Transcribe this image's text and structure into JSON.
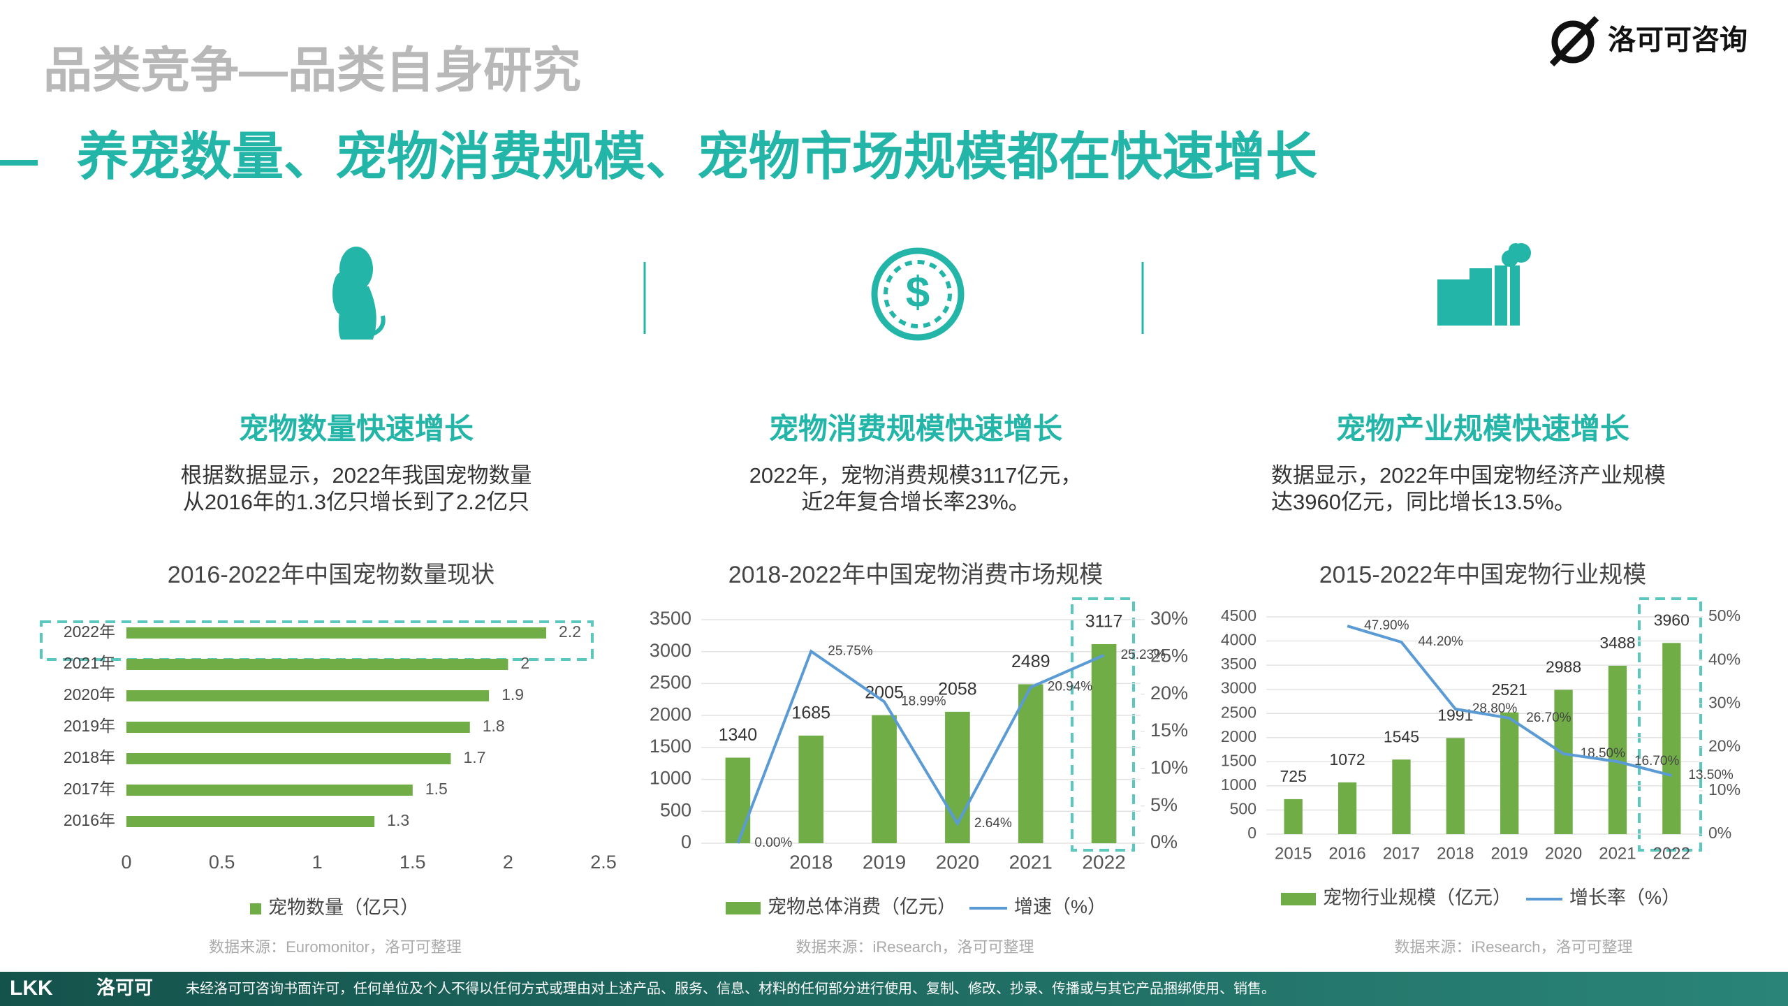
{
  "header": {
    "title": "品类竞争—品类自身研究",
    "logo": "洛可可咨询",
    "subtitle": "养宠数量、宠物消费规模、宠物市场规模都在快速增长"
  },
  "panels": [
    {
      "heading": "宠物数量快速增长",
      "desc": [
        "根据数据显示，2022年我国宠物数量",
        "从2016年的1.3亿只增长到了2.2亿只"
      ]
    },
    {
      "heading": "宠物消费规模快速增长",
      "desc": [
        "2022年，宠物消费规模3117亿元，",
        "近2年复合增长率23%。"
      ]
    },
    {
      "heading": "宠物产业规模快速增长",
      "desc": [
        "数据显示，2022年中国宠物经济产业规模",
        "达3960亿元，同比增长13.5%。"
      ]
    }
  ],
  "chart_data": [
    {
      "type": "hbar",
      "title": "2016-2022年中国宠物数量现状",
      "categories": [
        "2022年",
        "2021年",
        "2020年",
        "2019年",
        "2018年",
        "2017年",
        "2016年"
      ],
      "series": [
        {
          "name": "宠物数量（亿只）",
          "color": "#70ad47",
          "values": [
            2.2,
            2,
            1.9,
            1.8,
            1.7,
            1.5,
            1.3
          ]
        }
      ],
      "xlim": [
        0,
        2.5
      ],
      "xticks": [
        0,
        0.5,
        1,
        1.5,
        2,
        2.5
      ],
      "grid": false,
      "source": "数据来源：Euromonitor，洛可可整理"
    },
    {
      "type": "combo",
      "title": "2018-2022年中国宠物消费市场规模",
      "categories": [
        null,
        "2018",
        "2019",
        "2020",
        "2021",
        "2022"
      ],
      "series": [
        {
          "name": "宠物总体消费（亿元）",
          "kind": "bar",
          "color": "#70ad47",
          "values": [
            1340,
            1685,
            2005,
            2058,
            2489,
            3117
          ]
        },
        {
          "name": "增速（%）",
          "kind": "line",
          "axis": "y2",
          "color": "#5b9bd5",
          "values": [
            0,
            25.75,
            18.99,
            2.64,
            20.94,
            25.23
          ],
          "value_labels": [
            "0.00%",
            "25.75%",
            "18.99%",
            "2.64%",
            "20.94%",
            "25.23%"
          ]
        }
      ],
      "ylim": [
        0,
        3500
      ],
      "yticks": [
        0,
        500,
        1000,
        1500,
        2000,
        2500,
        3000,
        3500
      ],
      "y2lim": [
        0,
        30
      ],
      "y2ticks": [
        {
          "value": 0,
          "label": "0%"
        },
        {
          "value": 5,
          "label": "5%"
        },
        {
          "value": 10,
          "label": "10%"
        },
        {
          "value": 15,
          "label": "15%"
        },
        {
          "value": 20,
          "label": "20%"
        },
        {
          "value": 25,
          "label": "25%"
        },
        {
          "value": 30,
          "label": "30%"
        }
      ],
      "grid": true,
      "source": "数据来源：iResearch，洛可可整理"
    },
    {
      "type": "combo",
      "title": "2015-2022年中国宠物行业规模",
      "categories": [
        "2015",
        "2016",
        "2017",
        "2018",
        "2019",
        "2020",
        "2021",
        "2022"
      ],
      "series": [
        {
          "name": "宠物行业规模（亿元）",
          "kind": "bar",
          "color": "#70ad47",
          "values": [
            725,
            1072,
            1545,
            1991,
            2521,
            2988,
            3488,
            3960
          ]
        },
        {
          "name": "增长率（%）",
          "kind": "line",
          "axis": "y2",
          "color": "#5b9bd5",
          "values": [
            null,
            47.9,
            44.2,
            28.8,
            26.7,
            18.5,
            16.7,
            13.5
          ],
          "value_labels": [
            null,
            "47.90%",
            "44.20%",
            "28.80%",
            "26.70%",
            "18.50%",
            "16.70%",
            "13.50%"
          ]
        }
      ],
      "ylim": [
        0,
        4500
      ],
      "yticks": [
        0,
        500,
        1000,
        1500,
        2000,
        2500,
        3000,
        3500,
        4000,
        4500
      ],
      "y2lim": [
        0,
        50
      ],
      "y2ticks": [
        {
          "value": 0,
          "label": "0%"
        },
        {
          "value": 10,
          "label": "10%"
        },
        {
          "value": 20,
          "label": "20%"
        },
        {
          "value": 30,
          "label": "30%"
        },
        {
          "value": 40,
          "label": "40%"
        },
        {
          "value": 50,
          "label": "50%"
        }
      ],
      "grid": true,
      "source": "数据来源：iResearch，洛可可整理"
    }
  ],
  "footer": {
    "brand": "LKK",
    "brand_cn": "洛可可",
    "notice": "未经洛可可咨询书面许可，任何单位及个人不得以任何方式或理由对上述产品、服务、信息、材料的任何部分进行使用、复制、修改、抄录、传播或与其它产品捆绑使用、销售。"
  }
}
